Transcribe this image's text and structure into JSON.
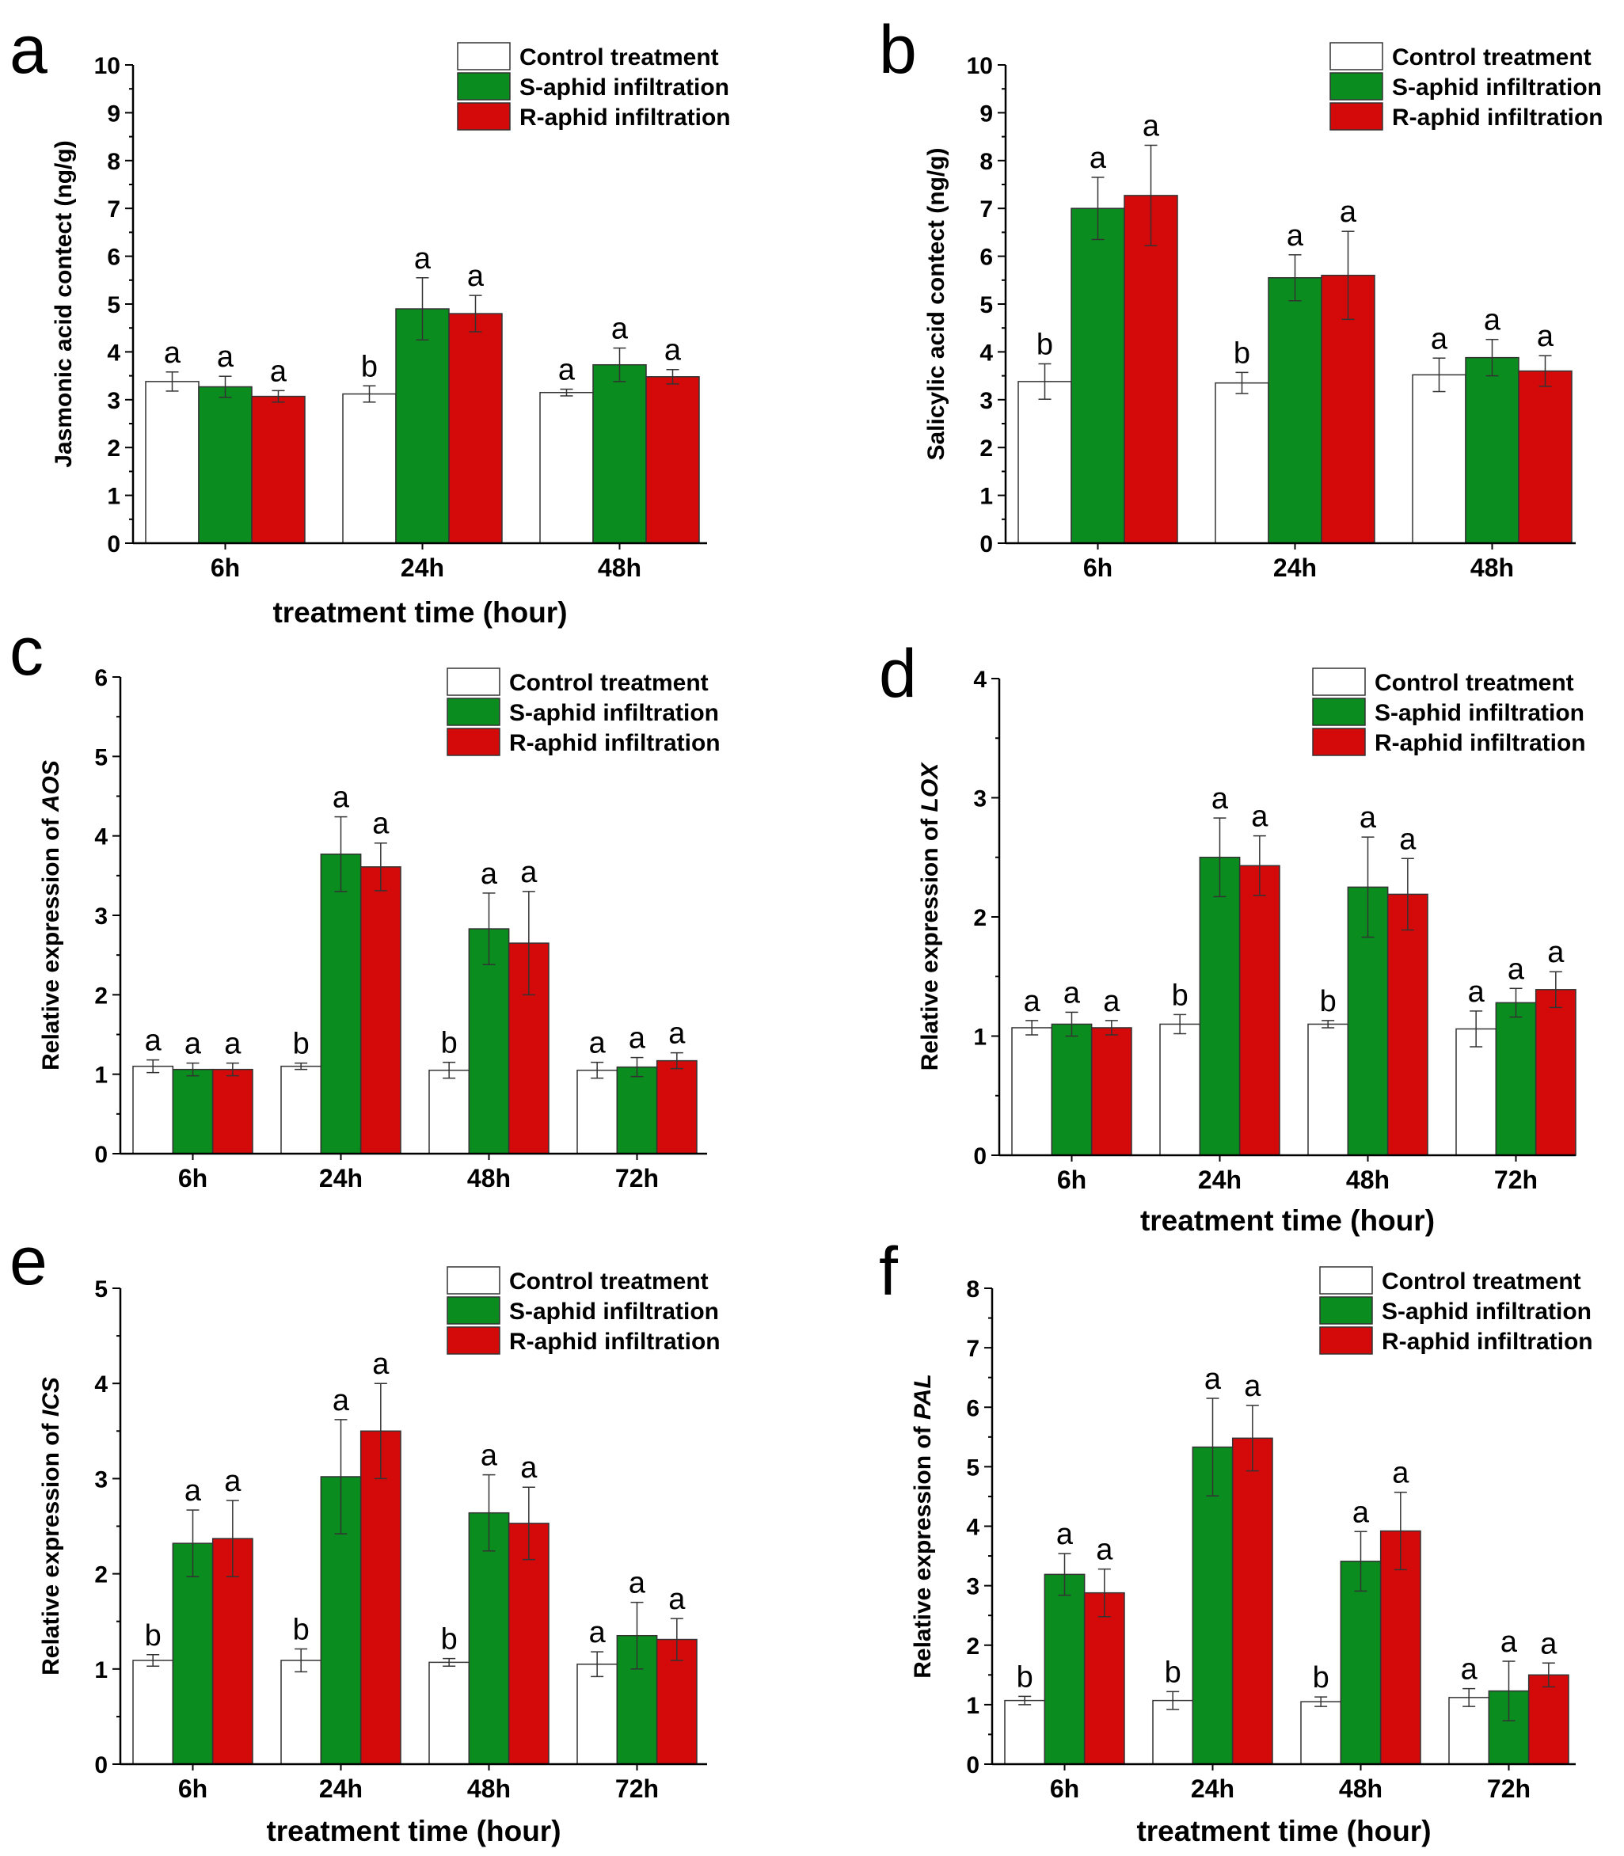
{
  "figure": {
    "colors": {
      "control": "#ffffff",
      "s_aphid": "#0a8c1e",
      "r_aphid": "#d40a0a",
      "stroke": "#333333"
    },
    "legend": [
      "Control treatment",
      "S-aphid infiltration",
      "R-aphid infiltration"
    ]
  },
  "chart_data": [
    {
      "panel": "a",
      "type": "bar",
      "ylabel": "Jasmonic acid contect (ng/g)",
      "ylabel_italic": "",
      "xlabel": "treatment time (hour)",
      "ylim": [
        0,
        10
      ],
      "yticks": [
        0,
        1,
        2,
        3,
        4,
        5,
        6,
        7,
        8,
        9,
        10
      ],
      "categories": [
        "6h",
        "24h",
        "48h"
      ],
      "series": [
        {
          "name": "Control treatment",
          "values": [
            3.38,
            3.12,
            3.15
          ],
          "errors": [
            0.2,
            0.17,
            0.07
          ],
          "labels": [
            "a",
            "b",
            "a"
          ]
        },
        {
          "name": "S-aphid infiltration",
          "values": [
            3.27,
            4.9,
            3.73
          ],
          "errors": [
            0.22,
            0.65,
            0.35
          ],
          "labels": [
            "a",
            "a",
            "a"
          ]
        },
        {
          "name": "R-aphid infiltration",
          "values": [
            3.07,
            4.8,
            3.48
          ],
          "errors": [
            0.12,
            0.38,
            0.15
          ],
          "labels": [
            "a",
            "a",
            "a"
          ]
        }
      ]
    },
    {
      "panel": "b",
      "type": "bar",
      "ylabel": "Salicylic acid contect (ng/g)",
      "ylabel_italic": "",
      "xlabel": "",
      "ylim": [
        0,
        10
      ],
      "yticks": [
        0,
        1,
        2,
        3,
        4,
        5,
        6,
        7,
        8,
        9,
        10
      ],
      "categories": [
        "6h",
        "24h",
        "48h"
      ],
      "series": [
        {
          "name": "Control treatment",
          "values": [
            3.38,
            3.35,
            3.52
          ],
          "errors": [
            0.37,
            0.22,
            0.35
          ],
          "labels": [
            "b",
            "b",
            "a"
          ]
        },
        {
          "name": "S-aphid infiltration",
          "values": [
            7.0,
            5.55,
            3.88
          ],
          "errors": [
            0.65,
            0.48,
            0.38
          ],
          "labels": [
            "a",
            "a",
            "a"
          ]
        },
        {
          "name": "R-aphid infiltration",
          "values": [
            7.27,
            5.6,
            3.6
          ],
          "errors": [
            1.05,
            0.92,
            0.32
          ],
          "labels": [
            "a",
            "a",
            "a"
          ]
        }
      ]
    },
    {
      "panel": "c",
      "type": "bar",
      "ylabel": "Relative expression of ",
      "ylabel_italic": "AOS",
      "xlabel": "",
      "ylim": [
        0,
        6
      ],
      "yticks": [
        0,
        1,
        2,
        3,
        4,
        5,
        6
      ],
      "categories": [
        "6h",
        "24h",
        "48h",
        "72h"
      ],
      "series": [
        {
          "name": "Control treatment",
          "values": [
            1.1,
            1.1,
            1.05,
            1.05
          ],
          "errors": [
            0.08,
            0.04,
            0.1,
            0.1
          ],
          "labels": [
            "a",
            "b",
            "b",
            "a"
          ]
        },
        {
          "name": "S-aphid infiltration",
          "values": [
            1.06,
            3.77,
            2.83,
            1.09
          ],
          "errors": [
            0.08,
            0.47,
            0.45,
            0.12
          ],
          "labels": [
            "a",
            "a",
            "a",
            "a"
          ]
        },
        {
          "name": "R-aphid infiltration",
          "values": [
            1.06,
            3.61,
            2.65,
            1.17
          ],
          "errors": [
            0.08,
            0.3,
            0.65,
            0.1
          ],
          "labels": [
            "a",
            "a",
            "a",
            "a"
          ]
        }
      ]
    },
    {
      "panel": "d",
      "type": "bar",
      "ylabel": "Relative expression of ",
      "ylabel_italic": "LOX",
      "xlabel": "treatment time (hour)",
      "ylim": [
        0,
        4
      ],
      "yticks": [
        0,
        1,
        2,
        3,
        4
      ],
      "categories": [
        "6h",
        "24h",
        "48h",
        "72h"
      ],
      "series": [
        {
          "name": "Control treatment",
          "values": [
            1.07,
            1.1,
            1.1,
            1.06
          ],
          "errors": [
            0.06,
            0.08,
            0.03,
            0.15
          ],
          "labels": [
            "a",
            "b",
            "b",
            "a"
          ]
        },
        {
          "name": "S-aphid infiltration",
          "values": [
            1.1,
            2.5,
            2.25,
            1.28
          ],
          "errors": [
            0.1,
            0.33,
            0.42,
            0.12
          ],
          "labels": [
            "a",
            "a",
            "a",
            "a"
          ]
        },
        {
          "name": "R-aphid infiltration",
          "values": [
            1.07,
            2.43,
            2.19,
            1.39
          ],
          "errors": [
            0.06,
            0.25,
            0.3,
            0.15
          ],
          "labels": [
            "a",
            "a",
            "a",
            "a"
          ]
        }
      ]
    },
    {
      "panel": "e",
      "type": "bar",
      "ylabel": "Relative expression of ",
      "ylabel_italic": "ICS",
      "xlabel": "treatment time (hour)",
      "ylim": [
        0,
        5
      ],
      "yticks": [
        0,
        1,
        2,
        3,
        4,
        5
      ],
      "categories": [
        "6h",
        "24h",
        "48h",
        "72h"
      ],
      "series": [
        {
          "name": "Control treatment",
          "values": [
            1.09,
            1.09,
            1.07,
            1.05
          ],
          "errors": [
            0.06,
            0.12,
            0.04,
            0.13
          ],
          "labels": [
            "b",
            "b",
            "b",
            "a"
          ]
        },
        {
          "name": "S-aphid infiltration",
          "values": [
            2.32,
            3.02,
            2.64,
            1.35
          ],
          "errors": [
            0.35,
            0.6,
            0.4,
            0.35
          ],
          "labels": [
            "a",
            "a",
            "a",
            "a"
          ]
        },
        {
          "name": "R-aphid infiltration",
          "values": [
            2.37,
            3.5,
            2.53,
            1.31
          ],
          "errors": [
            0.4,
            0.5,
            0.38,
            0.22
          ],
          "labels": [
            "a",
            "a",
            "a",
            "a"
          ]
        }
      ]
    },
    {
      "panel": "f",
      "type": "bar",
      "ylabel": "Relative expression of ",
      "ylabel_italic": "PAL",
      "xlabel": "treatment time (hour)",
      "ylim": [
        0,
        8
      ],
      "yticks": [
        0,
        1,
        2,
        3,
        4,
        5,
        6,
        7,
        8
      ],
      "categories": [
        "6h",
        "24h",
        "48h",
        "72h"
      ],
      "series": [
        {
          "name": "Control treatment",
          "values": [
            1.07,
            1.07,
            1.05,
            1.12
          ],
          "errors": [
            0.07,
            0.15,
            0.08,
            0.15
          ],
          "labels": [
            "b",
            "b",
            "b",
            "a"
          ]
        },
        {
          "name": "S-aphid infiltration",
          "values": [
            3.19,
            5.33,
            3.41,
            1.23
          ],
          "errors": [
            0.35,
            0.82,
            0.5,
            0.5
          ],
          "labels": [
            "a",
            "a",
            "a",
            "a"
          ]
        },
        {
          "name": "R-aphid infiltration",
          "values": [
            2.88,
            5.48,
            3.92,
            1.5
          ],
          "errors": [
            0.4,
            0.55,
            0.65,
            0.2
          ],
          "labels": [
            "a",
            "a",
            "a",
            "a"
          ]
        }
      ]
    }
  ]
}
